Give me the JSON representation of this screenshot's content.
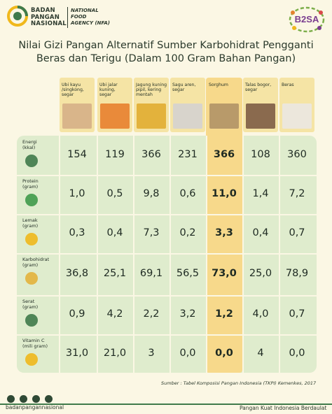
{
  "header": {
    "org_name": [
      "BADAN",
      "PANGAN",
      "NASIONAL"
    ],
    "org_sub": [
      "NATIONAL",
      "FOOD",
      "AGENCY (NFA)"
    ],
    "campaign_logo": "B2SA"
  },
  "title": [
    "Nilai Gizi Pangan Alternatif Sumber Karbohidrat Pengganti",
    "Beras dan Terigu (Dalam 100 Gram Bahan Pangan)"
  ],
  "columns": [
    {
      "label": [
        "Ubi kayu",
        "/singkong,",
        "segar"
      ],
      "color": "#d9b58a"
    },
    {
      "label": [
        "Ubi jalar",
        "kuning,",
        "segar"
      ],
      "color": "#e98a3a"
    },
    {
      "label": [
        "Jagung kuning",
        "pipil, kering",
        "mentah"
      ],
      "color": "#e3b23c"
    },
    {
      "label": [
        "Sagu aren,",
        "segar"
      ],
      "color": "#d8d4cc"
    },
    {
      "label": [
        "Sorghum"
      ],
      "color": "#b89a6a"
    },
    {
      "label": [
        "Talas bogor,",
        "segar"
      ],
      "color": "#8a6a4e"
    },
    {
      "label": [
        "Beras"
      ],
      "color": "#ece7dc"
    }
  ],
  "rows": [
    {
      "label": [
        "Energi",
        "(kkal)"
      ],
      "icon": "energy-plug-icon",
      "values": [
        "154",
        "119",
        "366",
        "231",
        "366",
        "108",
        "360"
      ]
    },
    {
      "label": [
        "Protein",
        "(gram)"
      ],
      "icon": "protein-shaker-icon",
      "values": [
        "1,0",
        "0,5",
        "9,8",
        "0,6",
        "11,0",
        "1,4",
        "7,2"
      ]
    },
    {
      "label": [
        "Lemak",
        "(gram)"
      ],
      "icon": "fat-droplets-icon",
      "values": [
        "0,3",
        "0,4",
        "7,3",
        "0,2",
        "3,3",
        "0,4",
        "0,7"
      ]
    },
    {
      "label": [
        "Karbohidrat",
        "(gram)"
      ],
      "icon": "carbohydrate-grain-icon",
      "values": [
        "36,8",
        "25,1",
        "69,1",
        "56,5",
        "73,0",
        "25,0",
        "78,9"
      ]
    },
    {
      "label": [
        "Serat",
        "(gram)"
      ],
      "icon": "fiber-leaf-icon",
      "values": [
        "0,9",
        "4,2",
        "2,2",
        "3,2",
        "1,2",
        "4,0",
        "0,7"
      ]
    },
    {
      "label": [
        "Vitamin C",
        "(mili gram)"
      ],
      "icon": "vitamin-c-icon",
      "values": [
        "31,0",
        "21,0",
        "3",
        "0,0",
        "0,0",
        "4",
        "0,0"
      ]
    }
  ],
  "highlight_column_index": 4,
  "source": "Sumber : Tabel Komposisi Pangan Indonesia (TKPI) Kemenkes, 2017",
  "footer": {
    "social_icons": [
      "facebook-icon",
      "instagram-icon",
      "twitter-icon",
      "youtube-icon"
    ],
    "handle": "badanpangannasional",
    "tagline": "Pangan Kuat Indonesia Berdaulat"
  },
  "colors": {
    "background": "#fbf7e4",
    "table": "#dfeccd",
    "header_panel": "#f5e4a5",
    "highlight": "#f7d98b",
    "brand_green": "#3f7a4a"
  }
}
